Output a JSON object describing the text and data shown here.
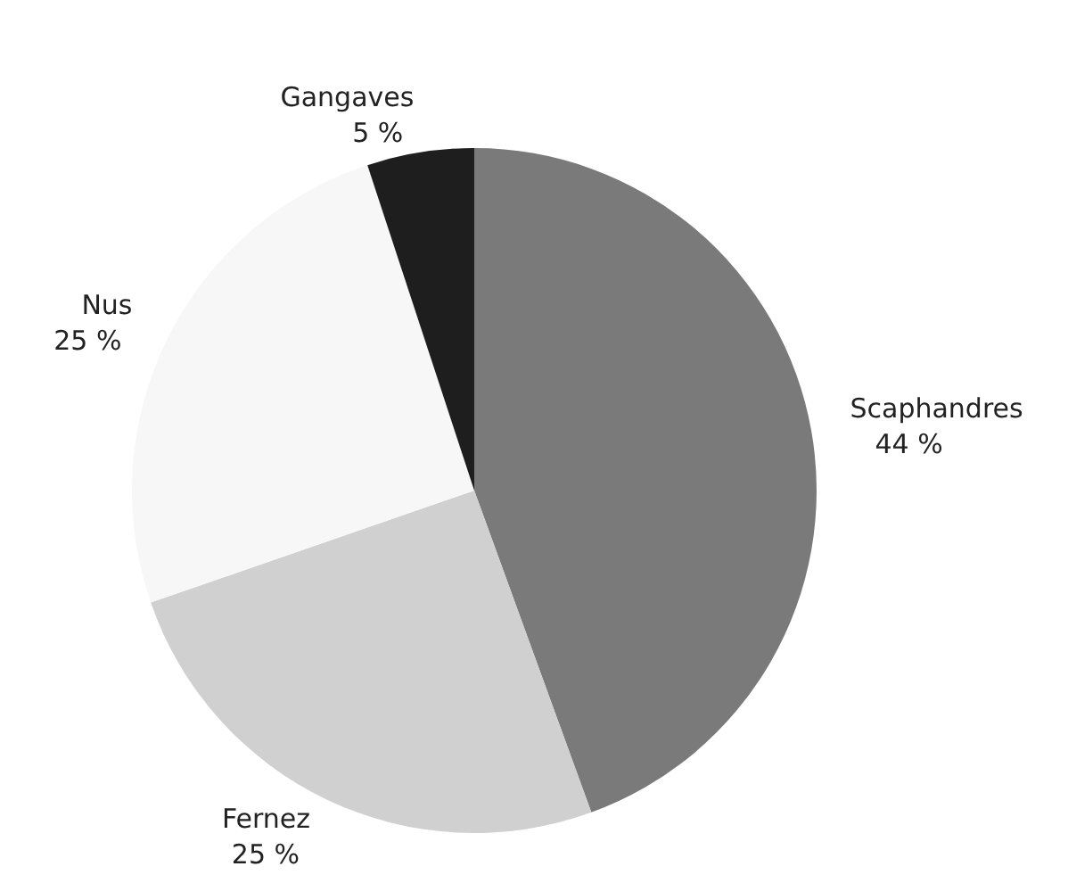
{
  "chart_data": {
    "type": "pie",
    "categories": [
      "Scaphandres",
      "Fernez",
      "Nus",
      "Gangaves"
    ],
    "values": [
      44,
      25,
      25,
      5
    ],
    "value_labels": [
      "44 %",
      "25 %",
      "25 %",
      "5 %"
    ],
    "colors": [
      "#7a7a7a",
      "#d0d0d0",
      "#f7f7f7",
      "#1e1e1e"
    ],
    "legend": false
  }
}
